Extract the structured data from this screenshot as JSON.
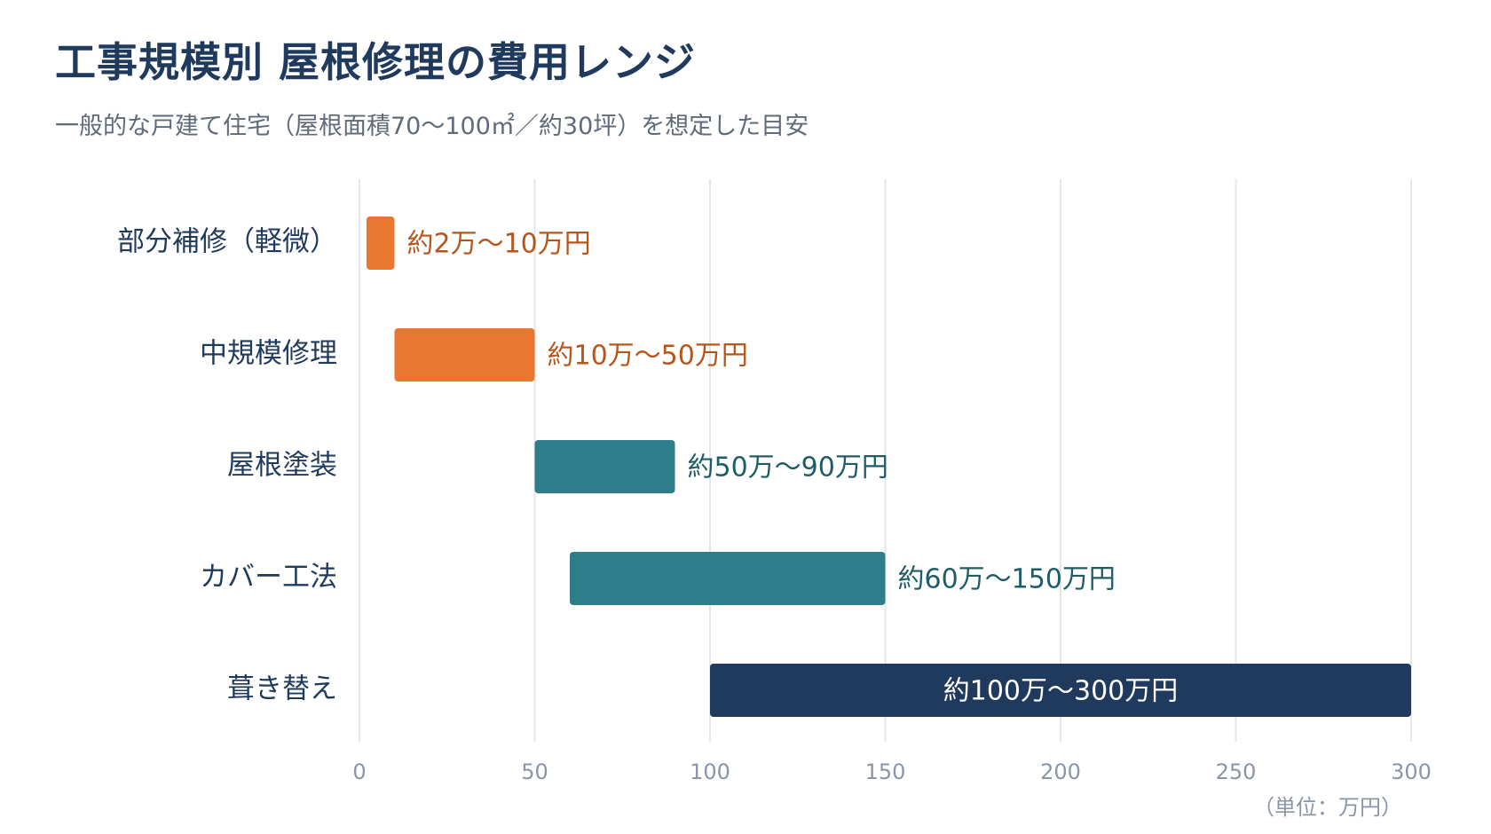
{
  "header": {
    "title": "工事規模別 屋根修理の費用レンジ",
    "subtitle": "一般的な戸建て住宅（屋根面積70〜100㎡／約30坪）を想定した目安"
  },
  "chart_data": {
    "type": "bar",
    "orientation": "horizontal",
    "subtype": "range",
    "categories": [
      "部分補修（軽微）",
      "中規模修理",
      "屋根塗装",
      "カバー工法",
      "葺き替え"
    ],
    "ranges": [
      {
        "category": "部分補修（軽微）",
        "min": 2,
        "max": 10,
        "label": "約2万〜10万円",
        "color": "#e87830",
        "label_color": "#b5561c",
        "label_inside": false
      },
      {
        "category": "中規模修理",
        "min": 10,
        "max": 50,
        "label": "約10万〜50万円",
        "color": "#e87830",
        "label_color": "#b5561c",
        "label_inside": false
      },
      {
        "category": "屋根塗装",
        "min": 50,
        "max": 90,
        "label": "約50万〜90万円",
        "color": "#2e7d8a",
        "label_color": "#1f5c66",
        "label_inside": false
      },
      {
        "category": "カバー工法",
        "min": 60,
        "max": 150,
        "label": "約60万〜150万円",
        "color": "#2e7d8a",
        "label_color": "#1f5c66",
        "label_inside": false
      },
      {
        "category": "葺き替え",
        "min": 100,
        "max": 300,
        "label": "約100万〜300万円",
        "color": "#1f3a5c",
        "label_color": "#ffffff",
        "label_inside": true
      }
    ],
    "xlim": [
      0,
      300
    ],
    "xticks": [
      0,
      50,
      100,
      150,
      200,
      250,
      300
    ],
    "xlabel": "（単位：万円）",
    "grid": true,
    "legend": "none"
  },
  "colors": {
    "grid": "#e3e7ec",
    "tick_label": "#8a96a5",
    "category_label": "#1f3a5c"
  }
}
